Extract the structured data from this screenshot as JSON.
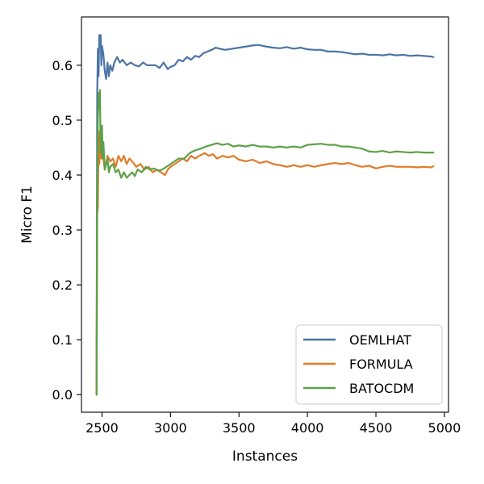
{
  "chart_data": {
    "type": "line",
    "xlabel": "Instances",
    "ylabel": "Micro F1",
    "xlim": [
      2350,
      5030
    ],
    "ylim": [
      -0.032,
      0.688
    ],
    "xticks": [
      2500,
      3000,
      3500,
      4000,
      4500,
      5000
    ],
    "xtick_labels": [
      "2500",
      "3000",
      "3500",
      "4000",
      "4500",
      "5000"
    ],
    "yticks": [
      0.0,
      0.1,
      0.2,
      0.3,
      0.4,
      0.5,
      0.6
    ],
    "ytick_labels": [
      "0.0",
      "0.1",
      "0.2",
      "0.3",
      "0.4",
      "0.5",
      "0.6"
    ],
    "grid": false,
    "legend_position": "lower-right",
    "series": [
      {
        "name": "OEMLHAT",
        "color": "#4a74a6",
        "x": [
          2460,
          2465,
          2470,
          2475,
          2480,
          2485,
          2490,
          2495,
          2500,
          2510,
          2520,
          2530,
          2540,
          2550,
          2560,
          2575,
          2590,
          2610,
          2630,
          2650,
          2680,
          2710,
          2740,
          2770,
          2800,
          2830,
          2860,
          2890,
          2920,
          2950,
          2980,
          3000,
          3030,
          3060,
          3090,
          3120,
          3150,
          3180,
          3210,
          3240,
          3270,
          3300,
          3330,
          3360,
          3400,
          3450,
          3500,
          3550,
          3600,
          3640,
          3700,
          3750,
          3800,
          3850,
          3900,
          3950,
          4000,
          4050,
          4100,
          4150,
          4200,
          4250,
          4300,
          4350,
          4400,
          4450,
          4500,
          4550,
          4600,
          4650,
          4700,
          4750,
          4800,
          4850,
          4900,
          4920
        ],
        "y": [
          0.0,
          0.55,
          0.63,
          0.58,
          0.655,
          0.64,
          0.655,
          0.6,
          0.635,
          0.62,
          0.59,
          0.575,
          0.605,
          0.58,
          0.6,
          0.59,
          0.605,
          0.615,
          0.605,
          0.61,
          0.6,
          0.605,
          0.6,
          0.598,
          0.605,
          0.6,
          0.6,
          0.6,
          0.595,
          0.605,
          0.593,
          0.597,
          0.6,
          0.61,
          0.607,
          0.615,
          0.61,
          0.617,
          0.615,
          0.622,
          0.625,
          0.628,
          0.632,
          0.63,
          0.628,
          0.63,
          0.632,
          0.634,
          0.636,
          0.637,
          0.634,
          0.632,
          0.631,
          0.633,
          0.63,
          0.632,
          0.629,
          0.628,
          0.628,
          0.625,
          0.625,
          0.624,
          0.622,
          0.62,
          0.621,
          0.619,
          0.619,
          0.618,
          0.62,
          0.618,
          0.619,
          0.617,
          0.618,
          0.617,
          0.616,
          0.615
        ]
      },
      {
        "name": "FORMULA",
        "color": "#e07b28",
        "x": [
          2460,
          2465,
          2470,
          2475,
          2480,
          2485,
          2490,
          2495,
          2500,
          2510,
          2520,
          2530,
          2540,
          2560,
          2580,
          2600,
          2620,
          2640,
          2660,
          2680,
          2700,
          2720,
          2750,
          2780,
          2810,
          2840,
          2870,
          2900,
          2930,
          2960,
          2980,
          3000,
          3030,
          3060,
          3090,
          3120,
          3150,
          3180,
          3210,
          3250,
          3280,
          3310,
          3340,
          3380,
          3420,
          3460,
          3500,
          3550,
          3600,
          3650,
          3700,
          3750,
          3800,
          3850,
          3900,
          3950,
          4000,
          4050,
          4100,
          4150,
          4200,
          4250,
          4300,
          4350,
          4400,
          4450,
          4500,
          4550,
          4600,
          4650,
          4700,
          4750,
          4800,
          4850,
          4900,
          4920
        ],
        "y": [
          0.0,
          0.33,
          0.34,
          0.48,
          0.42,
          0.44,
          0.47,
          0.43,
          0.45,
          0.43,
          0.41,
          0.42,
          0.435,
          0.425,
          0.43,
          0.415,
          0.435,
          0.425,
          0.435,
          0.42,
          0.43,
          0.425,
          0.415,
          0.42,
          0.41,
          0.415,
          0.405,
          0.41,
          0.405,
          0.4,
          0.41,
          0.415,
          0.42,
          0.425,
          0.43,
          0.425,
          0.435,
          0.43,
          0.435,
          0.44,
          0.435,
          0.438,
          0.43,
          0.435,
          0.432,
          0.435,
          0.428,
          0.425,
          0.428,
          0.422,
          0.425,
          0.42,
          0.418,
          0.415,
          0.418,
          0.415,
          0.418,
          0.415,
          0.418,
          0.42,
          0.422,
          0.42,
          0.422,
          0.418,
          0.415,
          0.417,
          0.412,
          0.415,
          0.417,
          0.415,
          0.415,
          0.415,
          0.414,
          0.415,
          0.414,
          0.416
        ]
      },
      {
        "name": "BATOCDM",
        "color": "#5ca146",
        "x": [
          2460,
          2465,
          2470,
          2475,
          2480,
          2485,
          2490,
          2495,
          2500,
          2505,
          2510,
          2520,
          2530,
          2540,
          2550,
          2560,
          2580,
          2600,
          2620,
          2640,
          2660,
          2680,
          2700,
          2720,
          2740,
          2760,
          2790,
          2820,
          2850,
          2880,
          2910,
          2940,
          2970,
          3000,
          3030,
          3060,
          3100,
          3140,
          3180,
          3220,
          3260,
          3300,
          3340,
          3380,
          3420,
          3460,
          3500,
          3550,
          3600,
          3650,
          3700,
          3750,
          3800,
          3850,
          3900,
          3950,
          4000,
          4050,
          4100,
          4150,
          4200,
          4250,
          4300,
          4350,
          4400,
          4450,
          4500,
          4550,
          4600,
          4650,
          4700,
          4750,
          4800,
          4850,
          4900,
          4920
        ],
        "y": [
          0.0,
          0.38,
          0.5,
          0.55,
          0.52,
          0.555,
          0.44,
          0.47,
          0.49,
          0.43,
          0.46,
          0.41,
          0.42,
          0.43,
          0.405,
          0.415,
          0.42,
          0.405,
          0.41,
          0.395,
          0.405,
          0.395,
          0.4,
          0.405,
          0.398,
          0.41,
          0.405,
          0.415,
          0.41,
          0.412,
          0.408,
          0.41,
          0.415,
          0.42,
          0.425,
          0.43,
          0.43,
          0.44,
          0.445,
          0.448,
          0.452,
          0.455,
          0.458,
          0.455,
          0.457,
          0.452,
          0.454,
          0.452,
          0.455,
          0.452,
          0.452,
          0.45,
          0.452,
          0.45,
          0.452,
          0.45,
          0.455,
          0.456,
          0.457,
          0.455,
          0.455,
          0.452,
          0.452,
          0.45,
          0.448,
          0.443,
          0.442,
          0.444,
          0.441,
          0.443,
          0.442,
          0.441,
          0.442,
          0.441,
          0.441,
          0.441
        ]
      }
    ]
  }
}
